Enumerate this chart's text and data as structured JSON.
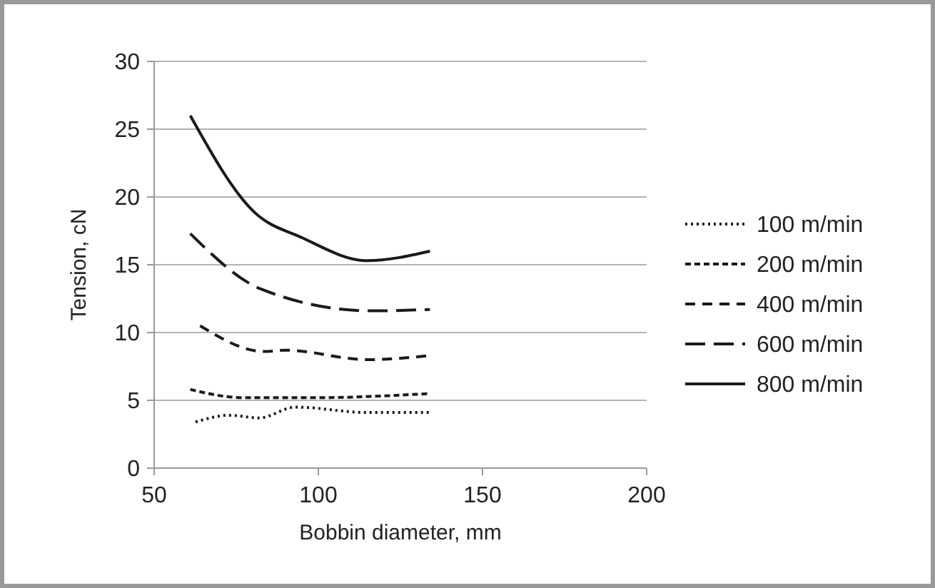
{
  "chart_data": {
    "type": "line",
    "xlabel": "Bobbin diameter, mm",
    "ylabel": "Tension, cN",
    "xlim": [
      50,
      200
    ],
    "xticks": [
      50,
      100,
      150,
      200
    ],
    "ylim": [
      0,
      30
    ],
    "yticks": [
      0,
      5,
      10,
      15,
      20,
      25,
      30
    ],
    "grid": "y",
    "legend": "right",
    "series": [
      {
        "name": "100 m/min",
        "color": "#1a1a1a",
        "line_style": "dotted",
        "x": [
          62.6,
          73,
          82,
          93,
          115,
          134
        ],
        "values": [
          3.4,
          3.9,
          3.7,
          4.5,
          4.1,
          4.1
        ]
      },
      {
        "name": "200 m/min",
        "color": "#1a1a1a",
        "line_style": "dashed",
        "x": [
          61,
          77,
          100,
          134
        ],
        "values": [
          5.8,
          5.2,
          5.2,
          5.5
        ]
      },
      {
        "name": "400 m/min",
        "color": "#1a1a1a",
        "line_style": "dashed",
        "x": [
          64,
          83.5,
          90,
          115,
          134
        ],
        "values": [
          10.5,
          8.6,
          8.7,
          8.0,
          8.3
        ]
      },
      {
        "name": "600 m/min",
        "color": "#1a1a1a",
        "line_style": "dashed",
        "x": [
          61,
          82.6,
          116,
          134
        ],
        "values": [
          17.3,
          13.2,
          11.6,
          11.7
        ]
      },
      {
        "name": "800 m/min",
        "color": "#1a1a1a",
        "line_style": "solid",
        "x": [
          61,
          80.4,
          95,
          114.8,
          134
        ],
        "values": [
          26.0,
          18.9,
          17.0,
          15.3,
          16.0
        ]
      }
    ]
  }
}
